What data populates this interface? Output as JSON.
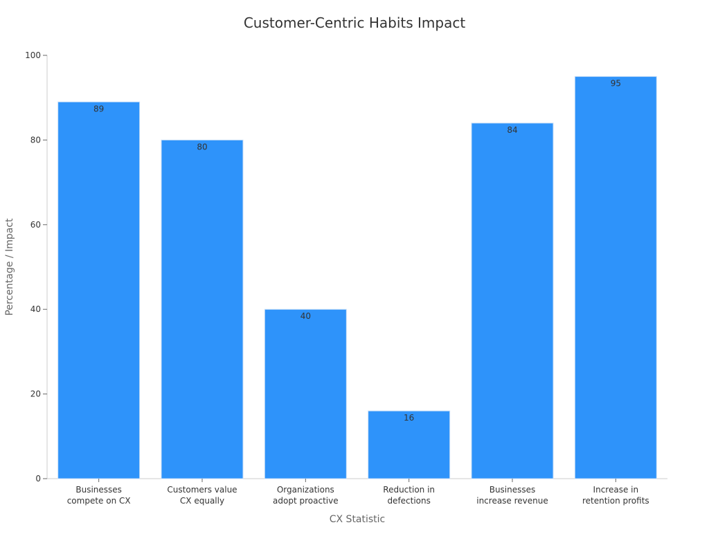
{
  "chart_data": {
    "type": "bar",
    "title": "Customer-Centric Habits Impact",
    "xlabel": "CX Statistic",
    "ylabel": "Percentage / Impact",
    "categories": [
      [
        "Businesses",
        "compete on CX"
      ],
      [
        "Customers value",
        "CX equally"
      ],
      [
        "Organizations",
        "adopt proactive"
      ],
      [
        "Reduction in",
        "defections"
      ],
      [
        "Businesses",
        "increase revenue"
      ],
      [
        "Increase in",
        "retention profits"
      ]
    ],
    "values": [
      89,
      80,
      40,
      16,
      84,
      95
    ],
    "ylim": [
      0,
      100
    ],
    "yticks": [
      0,
      20,
      40,
      60,
      80,
      100
    ],
    "grid": false,
    "legend": "none",
    "bar_color": "#2e93fa",
    "data_labels": true
  }
}
